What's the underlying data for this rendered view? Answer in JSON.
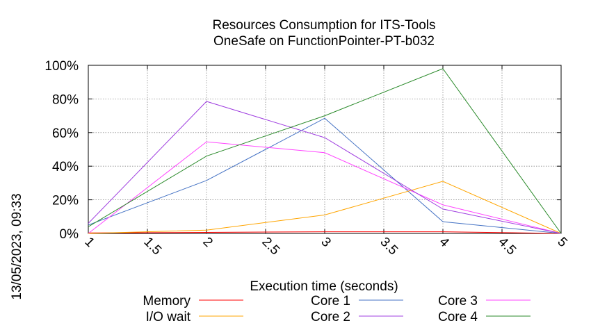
{
  "chart_data": {
    "type": "line",
    "title": [
      "Resources Consumption for ITS-Tools",
      "OneSafe on FunctionPointer-PT-b032"
    ],
    "xlabel": "Execution time (seconds)",
    "ylabel": "",
    "side_label": "13/05/2023, 09:33",
    "xlim": [
      1,
      5
    ],
    "ylim": [
      0,
      100
    ],
    "xticks": [
      1,
      1.5,
      2,
      2.5,
      3,
      3.5,
      4,
      4.5,
      5
    ],
    "xtick_labels": [
      "1",
      "1.5",
      "2",
      "2.5",
      "3",
      "3.5",
      "4",
      "4.5",
      "5"
    ],
    "yticks": [
      0,
      20,
      40,
      60,
      80,
      100
    ],
    "ytick_labels": [
      "0%",
      "20%",
      "40%",
      "60%",
      "80%",
      "100%"
    ],
    "grid": true,
    "legend_position": "bottom",
    "series": [
      {
        "name": "Memory",
        "color": "#ff0000",
        "x": [
          1,
          2,
          3,
          4,
          5
        ],
        "y": [
          0.3,
          0.6,
          1.0,
          1.0,
          0
        ]
      },
      {
        "name": "Core 1",
        "color": "#4472c4",
        "x": [
          1,
          2,
          3,
          4,
          5
        ],
        "y": [
          5,
          31.5,
          68.5,
          7,
          0
        ]
      },
      {
        "name": "Core 3",
        "color": "#ff44ff",
        "x": [
          1,
          2,
          3,
          4,
          5
        ],
        "y": [
          0,
          54.5,
          48,
          17,
          0
        ]
      },
      {
        "name": "I/O wait",
        "color": "#ffa500",
        "x": [
          1,
          2,
          3,
          4,
          5
        ],
        "y": [
          0,
          2,
          11,
          31,
          0
        ]
      },
      {
        "name": "Core 2",
        "color": "#a040e0",
        "x": [
          1,
          2,
          3,
          4,
          5
        ],
        "y": [
          6,
          78.5,
          57,
          14.5,
          0
        ]
      },
      {
        "name": "Core 4",
        "color": "#2a8a2a",
        "x": [
          1,
          2,
          3,
          4,
          5
        ],
        "y": [
          4,
          46,
          70,
          98,
          0
        ]
      }
    ]
  }
}
